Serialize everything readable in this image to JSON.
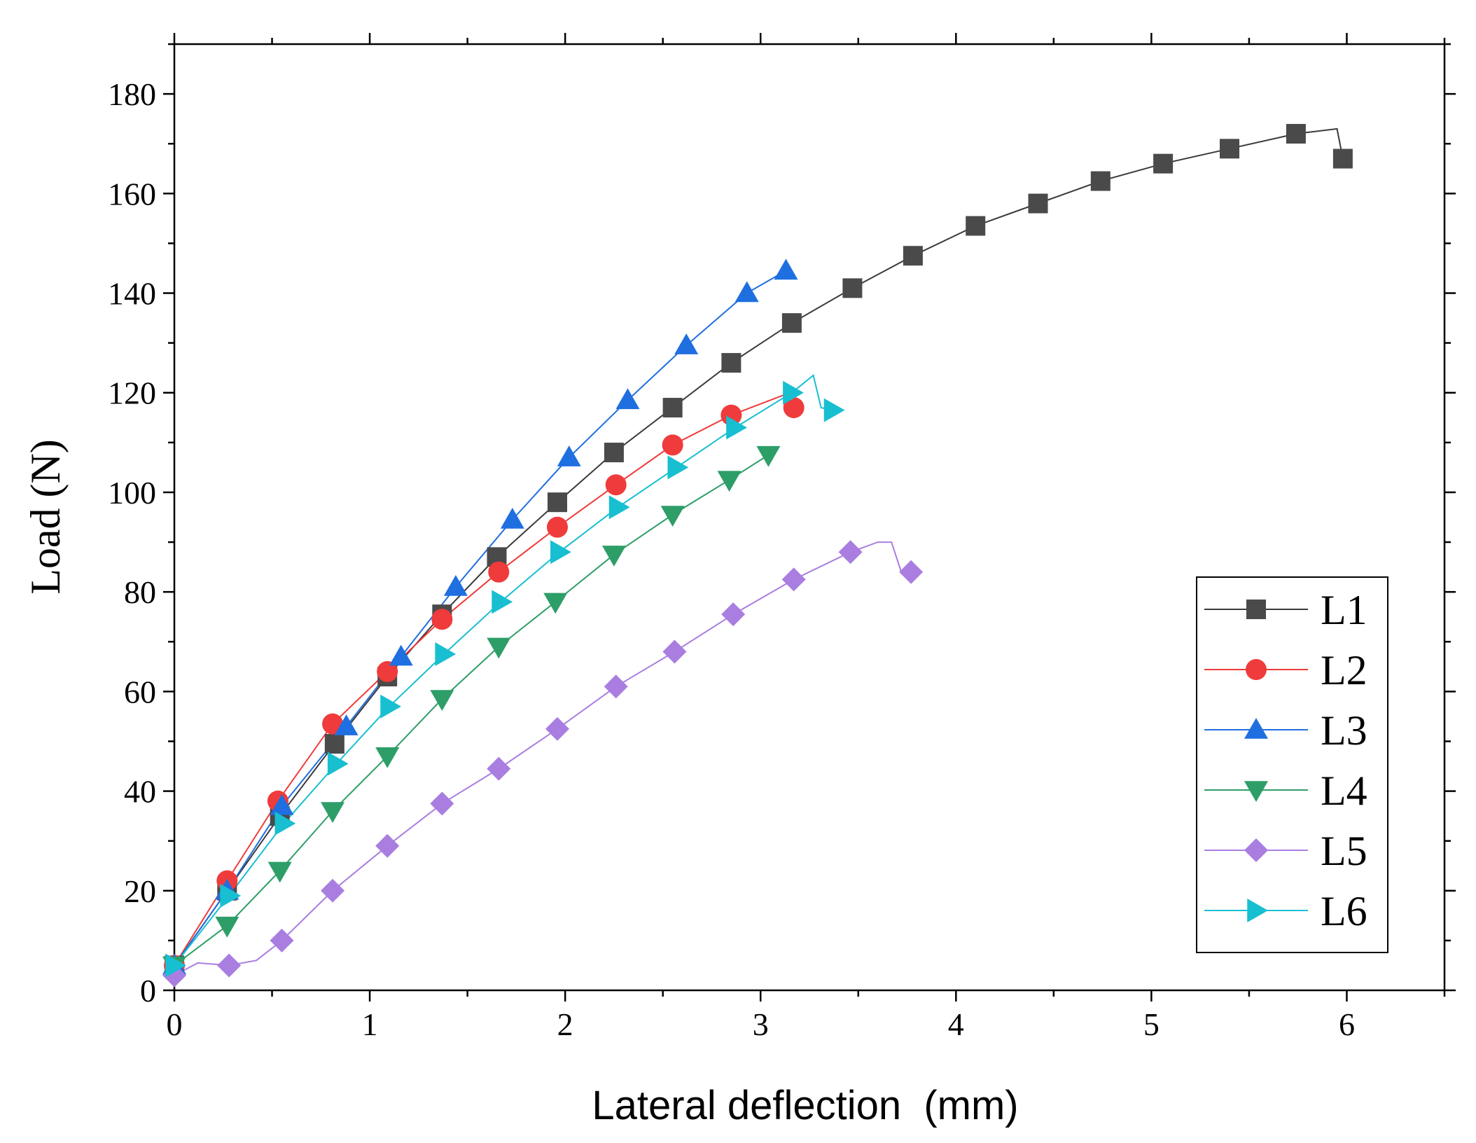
{
  "chart_data": {
    "type": "line",
    "xlabel": "Lateral deflection  (mm)",
    "ylabel": "Load (N)",
    "xlim": [
      0,
      6.5
    ],
    "ylim": [
      0,
      190
    ],
    "xticks": [
      0,
      1,
      2,
      3,
      4,
      5,
      6
    ],
    "yticks": [
      0,
      20,
      40,
      60,
      80,
      100,
      120,
      140,
      160,
      180
    ],
    "grid": false,
    "legend_position": "right-middle",
    "series": [
      {
        "name": "L1",
        "color": "#4a4a4a",
        "line_color": "#3a3a3a",
        "marker": "square",
        "line": [
          [
            0,
            5
          ],
          [
            0.27,
            20
          ],
          [
            0.54,
            35
          ],
          [
            0.82,
            49.5
          ],
          [
            1.09,
            63
          ],
          [
            1.37,
            75.5
          ],
          [
            1.65,
            87
          ],
          [
            1.96,
            98
          ],
          [
            2.25,
            108
          ],
          [
            2.55,
            117
          ],
          [
            2.85,
            126
          ],
          [
            3.16,
            134
          ],
          [
            3.47,
            141
          ],
          [
            3.78,
            147.5
          ],
          [
            4.1,
            153.5
          ],
          [
            4.42,
            158
          ],
          [
            4.74,
            162.5
          ],
          [
            5.06,
            166
          ],
          [
            5.4,
            169
          ],
          [
            5.74,
            172
          ],
          [
            5.95,
            173
          ],
          [
            5.98,
            167
          ]
        ],
        "points": [
          [
            0,
            5
          ],
          [
            0.27,
            20
          ],
          [
            0.54,
            35
          ],
          [
            0.82,
            49.5
          ],
          [
            1.09,
            63
          ],
          [
            1.37,
            75.5
          ],
          [
            1.65,
            87
          ],
          [
            1.96,
            98
          ],
          [
            2.25,
            108
          ],
          [
            2.55,
            117
          ],
          [
            2.85,
            126
          ],
          [
            3.16,
            134
          ],
          [
            3.47,
            141
          ],
          [
            3.78,
            147.5
          ],
          [
            4.1,
            153.5
          ],
          [
            4.42,
            158
          ],
          [
            4.74,
            162.5
          ],
          [
            5.06,
            166
          ],
          [
            5.4,
            169
          ],
          [
            5.74,
            172
          ],
          [
            5.98,
            167
          ]
        ]
      },
      {
        "name": "L2",
        "color": "#ef3b3b",
        "line_color": "#ef3b3b",
        "marker": "circle",
        "line": [
          [
            0,
            5
          ],
          [
            0.27,
            22
          ],
          [
            0.53,
            38
          ],
          [
            0.81,
            53.5
          ],
          [
            1.09,
            64
          ],
          [
            1.37,
            74.5
          ],
          [
            1.66,
            84
          ],
          [
            1.96,
            93
          ],
          [
            2.26,
            101.5
          ],
          [
            2.55,
            109.5
          ],
          [
            2.85,
            115.5
          ],
          [
            3.15,
            120
          ],
          [
            3.17,
            117
          ]
        ],
        "points": [
          [
            0,
            5
          ],
          [
            0.27,
            22
          ],
          [
            0.53,
            38
          ],
          [
            0.81,
            53.5
          ],
          [
            1.09,
            64
          ],
          [
            1.37,
            74.5
          ],
          [
            1.66,
            84
          ],
          [
            1.96,
            93
          ],
          [
            2.26,
            101.5
          ],
          [
            2.55,
            109.5
          ],
          [
            2.85,
            115.5
          ],
          [
            3.17,
            117
          ]
        ]
      },
      {
        "name": "L3",
        "color": "#1f6fe0",
        "line_color": "#1f6fe0",
        "marker": "triangle-up",
        "line": [
          [
            0,
            5
          ],
          [
            0.27,
            20
          ],
          [
            0.55,
            37
          ],
          [
            0.88,
            53
          ],
          [
            1.16,
            67
          ],
          [
            1.44,
            81
          ],
          [
            1.73,
            94.5
          ],
          [
            2.02,
            107
          ],
          [
            2.32,
            118.5
          ],
          [
            2.62,
            129.5
          ],
          [
            2.93,
            140
          ],
          [
            3.13,
            144.5
          ]
        ],
        "points": [
          [
            0,
            5
          ],
          [
            0.27,
            20
          ],
          [
            0.55,
            37
          ],
          [
            0.88,
            53
          ],
          [
            1.16,
            67
          ],
          [
            1.44,
            81
          ],
          [
            1.73,
            94.5
          ],
          [
            2.02,
            107
          ],
          [
            2.32,
            118.5
          ],
          [
            2.62,
            129.5
          ],
          [
            2.93,
            140
          ],
          [
            3.13,
            144.5
          ]
        ]
      },
      {
        "name": "L4",
        "color": "#2e9e68",
        "line_color": "#2e9e68",
        "marker": "triangle-down",
        "line": [
          [
            0,
            5
          ],
          [
            0.27,
            13
          ],
          [
            0.54,
            24
          ],
          [
            0.81,
            36
          ],
          [
            1.09,
            47
          ],
          [
            1.37,
            58.5
          ],
          [
            1.66,
            69
          ],
          [
            1.95,
            78
          ],
          [
            2.25,
            87.5
          ],
          [
            2.55,
            95.5
          ],
          [
            2.84,
            102.5
          ],
          [
            3.04,
            107.5
          ]
        ],
        "points": [
          [
            0,
            5
          ],
          [
            0.27,
            13
          ],
          [
            0.54,
            24
          ],
          [
            0.81,
            36
          ],
          [
            1.09,
            47
          ],
          [
            1.37,
            58.5
          ],
          [
            1.66,
            69
          ],
          [
            1.95,
            78
          ],
          [
            2.25,
            87.5
          ],
          [
            2.55,
            95.5
          ],
          [
            2.84,
            102.5
          ],
          [
            3.04,
            107.5
          ]
        ]
      },
      {
        "name": "L5",
        "color": "#a97ee0",
        "line_color": "#a97ee0",
        "marker": "diamond",
        "line": [
          [
            0,
            3
          ],
          [
            0.12,
            5.5
          ],
          [
            0.28,
            5
          ],
          [
            0.42,
            6
          ],
          [
            0.55,
            10
          ],
          [
            0.81,
            20
          ],
          [
            1.09,
            29
          ],
          [
            1.37,
            37.5
          ],
          [
            1.66,
            44.5
          ],
          [
            1.96,
            52.5
          ],
          [
            2.26,
            61
          ],
          [
            2.56,
            68
          ],
          [
            2.86,
            75.5
          ],
          [
            3.17,
            82.5
          ],
          [
            3.46,
            88
          ],
          [
            3.6,
            90
          ],
          [
            3.67,
            90
          ],
          [
            3.72,
            84
          ],
          [
            3.77,
            84
          ]
        ],
        "points": [
          [
            0,
            3
          ],
          [
            0.28,
            5
          ],
          [
            0.55,
            10
          ],
          [
            0.81,
            20
          ],
          [
            1.09,
            29
          ],
          [
            1.37,
            37.5
          ],
          [
            1.66,
            44.5
          ],
          [
            1.96,
            52.5
          ],
          [
            2.26,
            61
          ],
          [
            2.56,
            68
          ],
          [
            2.86,
            75.5
          ],
          [
            3.17,
            82.5
          ],
          [
            3.46,
            88
          ],
          [
            3.77,
            84
          ]
        ]
      },
      {
        "name": "L6",
        "color": "#17bfd0",
        "line_color": "#17bfd0",
        "marker": "triangle-right",
        "line": [
          [
            0,
            5
          ],
          [
            0.28,
            19
          ],
          [
            0.56,
            33.5
          ],
          [
            0.83,
            45.5
          ],
          [
            1.1,
            57
          ],
          [
            1.38,
            67.5
          ],
          [
            1.67,
            78
          ],
          [
            1.97,
            88
          ],
          [
            2.27,
            97
          ],
          [
            2.57,
            105
          ],
          [
            2.87,
            113
          ],
          [
            3.16,
            120
          ],
          [
            3.27,
            123.5
          ],
          [
            3.31,
            117
          ],
          [
            3.37,
            116.5
          ]
        ],
        "points": [
          [
            0,
            5
          ],
          [
            0.28,
            19
          ],
          [
            0.56,
            33.5
          ],
          [
            0.83,
            45.5
          ],
          [
            1.1,
            57
          ],
          [
            1.38,
            67.5
          ],
          [
            1.67,
            78
          ],
          [
            1.97,
            88
          ],
          [
            2.27,
            97
          ],
          [
            2.57,
            105
          ],
          [
            2.87,
            113
          ],
          [
            3.16,
            120
          ],
          [
            3.37,
            116.5
          ]
        ]
      }
    ]
  }
}
